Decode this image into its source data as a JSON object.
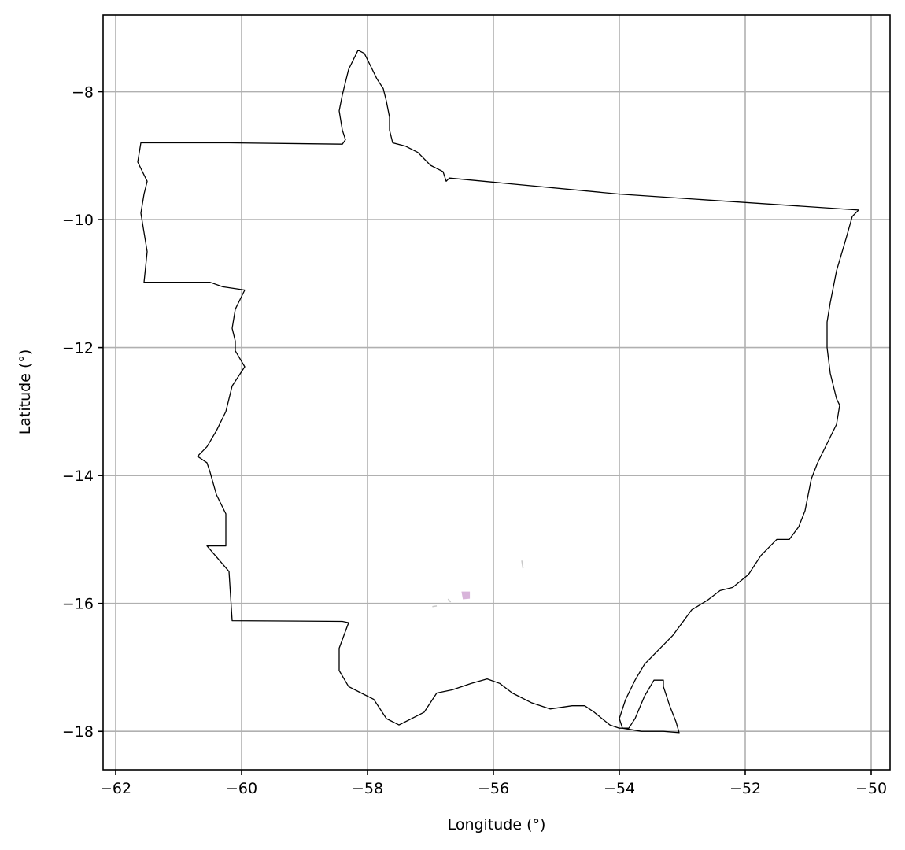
{
  "chart_data": {
    "type": "map",
    "xlabel": "Longitude (°)",
    "ylabel": "Latitude (°)",
    "xlim": [
      -62.2,
      -49.7
    ],
    "ylim": [
      -18.6,
      -6.8
    ],
    "xticks": [
      -62,
      -60,
      -58,
      -56,
      -54,
      -52,
      -50
    ],
    "yticks": [
      -8,
      -10,
      -12,
      -14,
      -16,
      -18
    ],
    "xtick_labels": [
      "−62",
      "−60",
      "−58",
      "−56",
      "−54",
      "−52",
      "−50"
    ],
    "ytick_labels": [
      "−8",
      "−10",
      "−12",
      "−14",
      "−16",
      "−18"
    ],
    "grid": true,
    "boundary_color": "#000000",
    "grid_color": "#b0b0b0",
    "boundary": [
      [
        -61.6,
        -8.8
      ],
      [
        -60.2,
        -8.8
      ],
      [
        -58.4,
        -8.82
      ],
      [
        -58.35,
        -8.75
      ],
      [
        -58.4,
        -8.6
      ],
      [
        -58.45,
        -8.3
      ],
      [
        -58.4,
        -8.05
      ],
      [
        -58.35,
        -7.85
      ],
      [
        -58.3,
        -7.65
      ],
      [
        -58.15,
        -7.35
      ],
      [
        -58.05,
        -7.4
      ],
      [
        -57.95,
        -7.6
      ],
      [
        -57.85,
        -7.8
      ],
      [
        -57.75,
        -7.95
      ],
      [
        -57.7,
        -8.15
      ],
      [
        -57.65,
        -8.4
      ],
      [
        -57.65,
        -8.6
      ],
      [
        -57.6,
        -8.8
      ],
      [
        -57.4,
        -8.85
      ],
      [
        -57.2,
        -8.95
      ],
      [
        -57.0,
        -9.15
      ],
      [
        -56.8,
        -9.25
      ],
      [
        -56.75,
        -9.4
      ],
      [
        -56.7,
        -9.35
      ],
      [
        -54.0,
        -9.6
      ],
      [
        -50.2,
        -9.85
      ],
      [
        -50.3,
        -9.95
      ],
      [
        -50.4,
        -10.3
      ],
      [
        -50.55,
        -10.8
      ],
      [
        -50.65,
        -11.3
      ],
      [
        -50.7,
        -11.6
      ],
      [
        -50.7,
        -12.0
      ],
      [
        -50.65,
        -12.4
      ],
      [
        -50.55,
        -12.8
      ],
      [
        -50.5,
        -12.9
      ],
      [
        -50.55,
        -13.2
      ],
      [
        -50.7,
        -13.5
      ],
      [
        -50.85,
        -13.8
      ],
      [
        -50.95,
        -14.05
      ],
      [
        -51.0,
        -14.3
      ],
      [
        -51.05,
        -14.55
      ],
      [
        -51.15,
        -14.8
      ],
      [
        -51.3,
        -15.0
      ],
      [
        -51.5,
        -15.0
      ],
      [
        -51.75,
        -15.25
      ],
      [
        -51.95,
        -15.55
      ],
      [
        -52.2,
        -15.75
      ],
      [
        -52.4,
        -15.8
      ],
      [
        -52.6,
        -15.95
      ],
      [
        -52.85,
        -16.1
      ],
      [
        -53.0,
        -16.3
      ],
      [
        -53.15,
        -16.5
      ],
      [
        -53.35,
        -16.7
      ],
      [
        -53.6,
        -16.95
      ],
      [
        -53.75,
        -17.2
      ],
      [
        -53.9,
        -17.5
      ],
      [
        -54.0,
        -17.8
      ],
      [
        -53.95,
        -17.95
      ],
      [
        -53.65,
        -18.0
      ],
      [
        -53.3,
        -18.0
      ],
      [
        -53.05,
        -18.02
      ],
      [
        -53.1,
        -17.85
      ],
      [
        -53.2,
        -17.6
      ],
      [
        -53.3,
        -17.3
      ],
      [
        -53.3,
        -17.2
      ],
      [
        -53.45,
        -17.2
      ],
      [
        -53.6,
        -17.45
      ],
      [
        -53.75,
        -17.8
      ],
      [
        -53.85,
        -17.95
      ],
      [
        -54.0,
        -17.95
      ],
      [
        -54.15,
        -17.9
      ],
      [
        -54.4,
        -17.7
      ],
      [
        -54.55,
        -17.6
      ],
      [
        -54.75,
        -17.6
      ],
      [
        -55.1,
        -17.65
      ],
      [
        -55.4,
        -17.55
      ],
      [
        -55.7,
        -17.4
      ],
      [
        -55.9,
        -17.25
      ],
      [
        -56.1,
        -17.18
      ],
      [
        -56.35,
        -17.25
      ],
      [
        -56.65,
        -17.35
      ],
      [
        -56.9,
        -17.4
      ],
      [
        -57.1,
        -17.7
      ],
      [
        -57.5,
        -17.9
      ],
      [
        -57.7,
        -17.8
      ],
      [
        -57.9,
        -17.5
      ],
      [
        -58.1,
        -17.4
      ],
      [
        -58.3,
        -17.3
      ],
      [
        -58.45,
        -17.05
      ],
      [
        -58.45,
        -16.7
      ],
      [
        -58.3,
        -16.3
      ],
      [
        -58.4,
        -16.28
      ],
      [
        -60.15,
        -16.27
      ],
      [
        -60.2,
        -15.5
      ],
      [
        -60.55,
        -15.1
      ],
      [
        -60.25,
        -15.1
      ],
      [
        -60.25,
        -14.6
      ],
      [
        -60.4,
        -14.3
      ],
      [
        -60.5,
        -13.95
      ],
      [
        -60.55,
        -13.8
      ],
      [
        -60.7,
        -13.7
      ],
      [
        -60.55,
        -13.55
      ],
      [
        -60.4,
        -13.3
      ],
      [
        -60.25,
        -13.0
      ],
      [
        -60.15,
        -12.6
      ],
      [
        -59.95,
        -12.3
      ],
      [
        -60.1,
        -12.05
      ],
      [
        -60.1,
        -11.9
      ],
      [
        -60.15,
        -11.7
      ],
      [
        -60.1,
        -11.4
      ],
      [
        -59.95,
        -11.1
      ],
      [
        -60.3,
        -11.05
      ],
      [
        -60.5,
        -10.98
      ],
      [
        -61.55,
        -10.98
      ],
      [
        -61.5,
        -10.5
      ],
      [
        -61.55,
        -10.2
      ],
      [
        -61.6,
        -9.9
      ],
      [
        -61.55,
        -9.6
      ],
      [
        -61.5,
        -9.4
      ],
      [
        -61.65,
        -9.1
      ],
      [
        -61.6,
        -8.8
      ]
    ],
    "minor_features": [
      {
        "color": "#d8b4da",
        "points": [
          [
            -56.5,
            -15.82
          ],
          [
            -56.38,
            -15.82
          ],
          [
            -56.38,
            -15.92
          ],
          [
            -56.48,
            -15.93
          ]
        ]
      },
      {
        "color": "#c8c8c8",
        "points": [
          [
            -55.55,
            -15.33
          ],
          [
            -55.53,
            -15.45
          ]
        ]
      },
      {
        "color": "#c8c8c8",
        "points": [
          [
            -56.97,
            -16.05
          ],
          [
            -56.9,
            -16.04
          ]
        ]
      },
      {
        "color": "#c8c8c8",
        "points": [
          [
            -56.72,
            -15.93
          ],
          [
            -56.68,
            -15.98
          ]
        ]
      }
    ]
  }
}
